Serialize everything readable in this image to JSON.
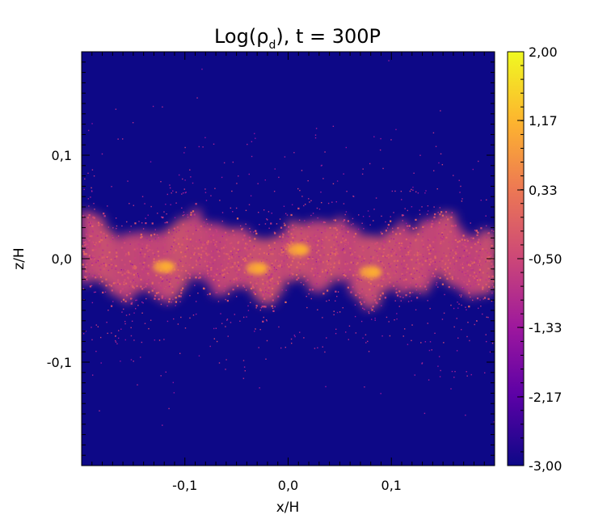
{
  "chart_data": {
    "type": "heatmap",
    "title": "Log(ρd), t = 300P",
    "title_parts": {
      "prefix": "Log(ρ",
      "subscript": "d",
      "suffix": "), t = 300P"
    },
    "xlabel": "x/H",
    "ylabel": "z/H",
    "xlim": [
      -0.2,
      0.2
    ],
    "ylim": [
      -0.2,
      0.2
    ],
    "x_ticks": [
      -0.1,
      0.0,
      0.1
    ],
    "x_tick_labels": [
      "-0,1",
      "0,0",
      "0,1"
    ],
    "y_ticks": [
      -0.1,
      0.0,
      0.1
    ],
    "y_tick_labels": [
      "-0,1",
      "0,0",
      "0,1"
    ],
    "colorbar": {
      "range": [
        -3.0,
        2.0
      ],
      "ticks": [
        2.0,
        1.17,
        0.33,
        -0.5,
        -1.33,
        -2.17,
        -3.0
      ],
      "tick_labels": [
        "2,00",
        "1,17",
        "0,33",
        "-0,50",
        "-1,33",
        "-2,17",
        "-3,00"
      ],
      "colormap": [
        "#0d0887",
        "#5c01a6",
        "#9c179e",
        "#cc4778",
        "#ed7953",
        "#fdb42f",
        "#f0f921"
      ]
    },
    "background_color": "#0d0887",
    "midplane_layer": {
      "center_z": 0.0,
      "half_thickness": 0.03,
      "peak_log_density": 1.1,
      "clumps_x": [
        -0.12,
        -0.03,
        0.01,
        0.08
      ]
    }
  }
}
